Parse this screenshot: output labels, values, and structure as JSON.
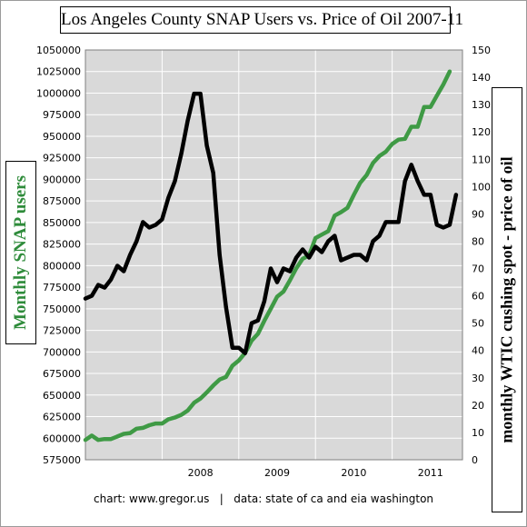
{
  "colors": {
    "plot_background": "#d9d9d9",
    "gridlines": "#ffffff",
    "snap_series": "#3f9a45",
    "oil_series": "#000000",
    "left_label": "#2e8b3a"
  },
  "chart_data": {
    "type": "line",
    "title": "Los Angeles County SNAP Users vs. Price of Oil 2007-11",
    "xlabel": "",
    "ylabel": "Monthly SNAP users",
    "ylabel_right": "monthly WTIC cushing spot - price of oil",
    "x_ticks": [
      "2008",
      "2009",
      "2010",
      "2011"
    ],
    "xlim": [
      2007.0,
      2011.917
    ],
    "ylim": [
      575000,
      1050000
    ],
    "ylim_right": [
      0,
      150
    ],
    "y_ticks": [
      575000,
      600000,
      625000,
      650000,
      675000,
      700000,
      725000,
      750000,
      775000,
      800000,
      825000,
      850000,
      875000,
      900000,
      925000,
      950000,
      975000,
      1000000,
      1025000,
      1050000
    ],
    "y_tick_labels": [
      "575000",
      "600000",
      "625000",
      "650000",
      "675000",
      "700000",
      "725000",
      "750000",
      "775000",
      "800000",
      "825000",
      "850000",
      "875000",
      "900000",
      "925000",
      "950000",
      "975000",
      "1000000",
      "1025000",
      "1050000"
    ],
    "y_right_ticks": [
      0,
      10,
      20,
      30,
      40,
      50,
      60,
      70,
      80,
      90,
      100,
      110,
      120,
      130,
      140,
      150
    ],
    "y_right_tick_labels": [
      "0",
      "10",
      "20",
      "30",
      "40",
      "50",
      "60",
      "70",
      "80",
      "90",
      "100",
      "110",
      "120",
      "130",
      "140",
      "150"
    ],
    "grid": true,
    "series": [
      {
        "axis": "left",
        "color": "#3f9a45",
        "x": [
          2007.0,
          2007.083,
          2007.167,
          2007.25,
          2007.333,
          2007.417,
          2007.5,
          2007.583,
          2007.667,
          2007.75,
          2007.833,
          2007.917,
          2008.0,
          2008.083,
          2008.167,
          2008.25,
          2008.333,
          2008.417,
          2008.5,
          2008.583,
          2008.667,
          2008.75,
          2008.833,
          2008.917,
          2009.0,
          2009.083,
          2009.167,
          2009.25,
          2009.333,
          2009.417,
          2009.5,
          2009.583,
          2009.667,
          2009.75,
          2009.833,
          2009.917,
          2010.0,
          2010.083,
          2010.167,
          2010.25,
          2010.333,
          2010.417,
          2010.5,
          2010.583,
          2010.667,
          2010.75,
          2010.833,
          2010.917,
          2011.0,
          2011.083,
          2011.167,
          2011.25,
          2011.333,
          2011.417,
          2011.5,
          2011.583,
          2011.667,
          2011.75
        ],
        "values": [
          598000,
          603000,
          598000,
          599000,
          599000,
          602000,
          605000,
          606000,
          611000,
          612000,
          615000,
          617000,
          617000,
          622000,
          624000,
          627000,
          632000,
          641000,
          646000,
          653000,
          661000,
          668000,
          671000,
          684000,
          690000,
          699000,
          713000,
          721000,
          736000,
          750000,
          764000,
          770000,
          783000,
          797000,
          808000,
          812000,
          832000,
          836000,
          840000,
          858000,
          862000,
          867000,
          882000,
          896000,
          905000,
          919000,
          927000,
          932000,
          941000,
          946000,
          947000,
          961000,
          961000,
          984000,
          984000,
          997000,
          1010000,
          1025000
        ]
      },
      {
        "axis": "right",
        "color": "#000000",
        "x": [
          2007.0,
          2007.083,
          2007.167,
          2007.25,
          2007.333,
          2007.417,
          2007.5,
          2007.583,
          2007.667,
          2007.75,
          2007.833,
          2007.917,
          2008.0,
          2008.083,
          2008.167,
          2008.25,
          2008.333,
          2008.417,
          2008.5,
          2008.583,
          2008.667,
          2008.75,
          2008.833,
          2008.917,
          2009.0,
          2009.083,
          2009.167,
          2009.25,
          2009.333,
          2009.417,
          2009.5,
          2009.583,
          2009.667,
          2009.75,
          2009.833,
          2009.917,
          2010.0,
          2010.083,
          2010.167,
          2010.25,
          2010.333,
          2010.417,
          2010.5,
          2010.583,
          2010.667,
          2010.75,
          2010.833,
          2010.917,
          2011.0,
          2011.083,
          2011.167,
          2011.25,
          2011.333,
          2011.417,
          2011.5,
          2011.583,
          2011.667,
          2011.75,
          2011.833
        ],
        "values": [
          59,
          60,
          64,
          63,
          66,
          71,
          69,
          75,
          80,
          87,
          85,
          86,
          88,
          96,
          102,
          112,
          124,
          134,
          134,
          115,
          105,
          75,
          56,
          41,
          41,
          39,
          50,
          51,
          58,
          70,
          65,
          70,
          69,
          74,
          77,
          74,
          78,
          76,
          80,
          82,
          73,
          74,
          75,
          75,
          73,
          80,
          82,
          87,
          87,
          87,
          102,
          108,
          102,
          97,
          97,
          86,
          85,
          86,
          97
        ]
      }
    ]
  },
  "footer": {
    "credit": "chart: www.gregor.us   |   data: state of ca and eia washington"
  }
}
